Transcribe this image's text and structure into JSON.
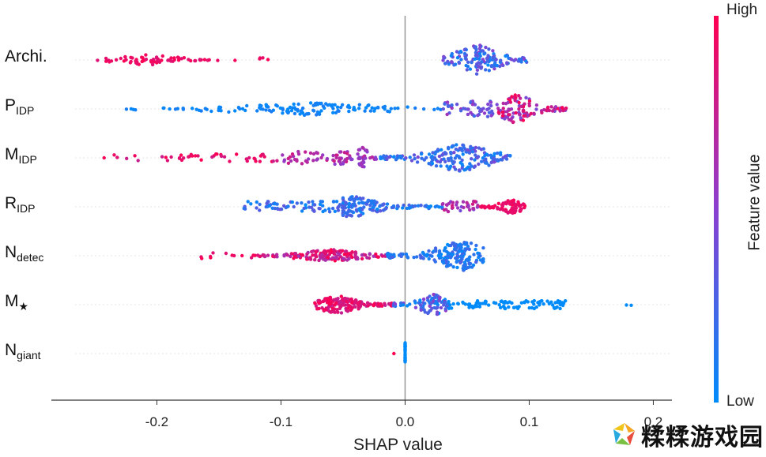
{
  "chart_data": {
    "type": "scatter",
    "subtype": "shap-beeswarm",
    "xlabel": "SHAP value",
    "xlim": [
      -0.285,
      0.215
    ],
    "ticks": [
      -0.2,
      -0.1,
      0.0,
      0.1,
      0.2
    ],
    "tick_labels": [
      "-0.2",
      "-0.1",
      "0.0",
      "0.1",
      "0.2"
    ],
    "colorbar": {
      "title": "Feature value",
      "high": "High",
      "low": "Low",
      "high_color": "#ff0051",
      "mid_color": "#8a3fd0",
      "low_color": "#008bfb"
    },
    "features": [
      {
        "name": "Archi.",
        "sub": "",
        "segments": [
          {
            "from": -0.26,
            "to": -0.15,
            "n": 70,
            "high": 1.0,
            "low": 0.85,
            "spread": 7,
            "peak": -0.21
          },
          {
            "from": -0.14,
            "to": -0.105,
            "n": 5,
            "high": 1.0,
            "low": 0.9,
            "spread": 3
          },
          {
            "from": 0.03,
            "to": 0.1,
            "n": 140,
            "high": 0.5,
            "low": 0.0,
            "spread": 20,
            "peak": 0.058
          }
        ]
      },
      {
        "name": "P",
        "sub": "IDP",
        "segments": [
          {
            "from": -0.23,
            "to": 0.03,
            "n": 140,
            "high": 0.1,
            "low": 0.0,
            "spread": 8,
            "peak": -0.08
          },
          {
            "from": 0.03,
            "to": 0.075,
            "n": 50,
            "high": 0.6,
            "low": 0.2,
            "spread": 10
          },
          {
            "from": 0.075,
            "to": 0.13,
            "n": 110,
            "high": 1.0,
            "low": 0.4,
            "spread": 20,
            "peak": 0.09
          }
        ]
      },
      {
        "name": "M",
        "sub": "IDP",
        "segments": [
          {
            "from": -0.245,
            "to": -0.1,
            "n": 45,
            "high": 1.0,
            "low": 0.75,
            "spread": 5
          },
          {
            "from": -0.1,
            "to": -0.045,
            "n": 55,
            "high": 0.8,
            "low": 0.5,
            "spread": 8
          },
          {
            "from": -0.045,
            "to": -0.02,
            "n": 35,
            "high": 0.7,
            "low": 0.45,
            "spread": 14,
            "peak": -0.035
          },
          {
            "from": -0.02,
            "to": 0.085,
            "n": 190,
            "high": 0.45,
            "low": 0.0,
            "spread": 18,
            "peak": 0.045
          }
        ]
      },
      {
        "name": "R",
        "sub": "IDP",
        "segments": [
          {
            "from": -0.13,
            "to": -0.05,
            "n": 70,
            "high": 0.35,
            "low": 0.0,
            "spread": 7
          },
          {
            "from": -0.05,
            "to": 0.03,
            "n": 150,
            "high": 0.35,
            "low": 0.0,
            "spread": 14,
            "peak": -0.043
          },
          {
            "from": 0.03,
            "to": 0.06,
            "n": 35,
            "high": 0.8,
            "low": 0.4,
            "spread": 7
          },
          {
            "from": 0.06,
            "to": 0.097,
            "n": 90,
            "high": 1.0,
            "low": 0.85,
            "spread": 10,
            "peak": 0.085
          }
        ]
      },
      {
        "name": "N",
        "sub": "detec",
        "segments": [
          {
            "from": -0.168,
            "to": -0.12,
            "n": 12,
            "high": 1.0,
            "low": 0.85,
            "spread": 4
          },
          {
            "from": -0.12,
            "to": -0.015,
            "n": 170,
            "high": 1.0,
            "low": 0.6,
            "spread": 8,
            "peak": -0.06
          },
          {
            "from": -0.015,
            "to": 0.063,
            "n": 180,
            "high": 0.3,
            "low": 0.0,
            "spread": 20,
            "peak": 0.045
          }
        ]
      },
      {
        "name": "M",
        "sub": "★",
        "segments": [
          {
            "from": -0.073,
            "to": -0.01,
            "n": 180,
            "high": 1.0,
            "low": 0.7,
            "spread": 12,
            "peak": -0.055
          },
          {
            "from": -0.01,
            "to": 0.035,
            "n": 90,
            "high": 0.55,
            "low": 0.0,
            "spread": 14,
            "peak": 0.023
          },
          {
            "from": 0.035,
            "to": 0.13,
            "n": 90,
            "high": 0.0,
            "low": 0.0,
            "spread": 5
          },
          {
            "from": 0.174,
            "to": 0.196,
            "n": 2,
            "high": 0.0,
            "low": 0.0,
            "spread": 1
          }
        ]
      },
      {
        "name": "N",
        "sub": "giant",
        "segments": [
          {
            "from": -0.009,
            "to": -0.009,
            "n": 1,
            "high": 1.0,
            "low": 1.0,
            "spread": 0
          },
          {
            "from": 0.0,
            "to": 0.0,
            "n": 30,
            "high": 0.0,
            "low": 0.0,
            "spread": 14
          }
        ]
      }
    ]
  },
  "watermark": {
    "text": "糅糅游戏园"
  }
}
